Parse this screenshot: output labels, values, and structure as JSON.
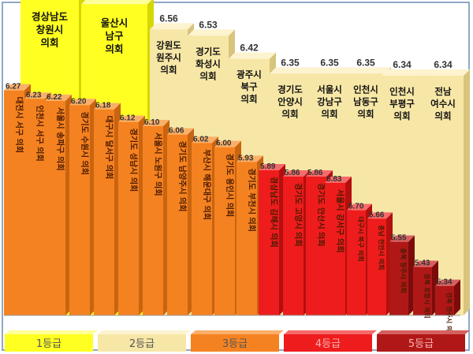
{
  "chart_data": {
    "type": "bar",
    "ylim": [
      5.2,
      6.8
    ],
    "grades": [
      {
        "name": "1등급",
        "color": "#ffff22",
        "side": "#d6d600",
        "top": "#ffff99",
        "labelColor": "#7a6a00"
      },
      {
        "name": "2등급",
        "color": "#f7e7a6",
        "side": "#d8c47c",
        "top": "#fdf3cf",
        "labelColor": "#7a6a00"
      },
      {
        "name": "3등급",
        "color": "#f58220",
        "side": "#c96410",
        "top": "#fab06a",
        "labelColor": "#7a3a00"
      },
      {
        "name": "4등급",
        "color": "#ee1c1c",
        "side": "#b40f0f",
        "top": "#f56a6a",
        "labelColor": "#7a0000"
      },
      {
        "name": "5등급",
        "color": "#b01818",
        "side": "#7c0c0c",
        "top": "#d66060",
        "labelColor": "#ffffff"
      }
    ],
    "bars": [
      {
        "label": "대전시 서구 의회",
        "value": 6.27,
        "grade": 2,
        "orient": "v"
      },
      {
        "label": "경상남도 창원시 의회",
        "value": 6.71,
        "grade": 0,
        "orient": "h"
      },
      {
        "label": "인천시 서구 의회",
        "value": 6.23,
        "grade": 2,
        "orient": "v"
      },
      {
        "label": "울산시 남구 의회",
        "value": 6.68,
        "grade": 0,
        "orient": "h"
      },
      {
        "label": "서울시 송파구 의회",
        "value": 6.22,
        "grade": 2,
        "orient": "v"
      },
      {
        "label": "경기도 수원시 의회",
        "value": 6.2,
        "grade": 2,
        "orient": "v"
      },
      {
        "label": "대구시 달서구 의회",
        "value": 6.18,
        "grade": 2,
        "orient": "v"
      },
      {
        "label": "경기도 성남시 의회",
        "value": 6.12,
        "grade": 2,
        "orient": "v"
      },
      {
        "label": "강원도 원주시 의회",
        "value": 6.56,
        "grade": 1,
        "orient": "h"
      },
      {
        "label": "서울시 노원구 의회",
        "value": 6.1,
        "grade": 2,
        "orient": "v"
      },
      {
        "label": "경기도 남양주시 의회",
        "value": 6.06,
        "grade": 2,
        "orient": "v"
      },
      {
        "label": "경기도 화성시 의회",
        "value": 6.53,
        "grade": 1,
        "orient": "h"
      },
      {
        "label": "부산시 해운대구 의회",
        "value": 6.02,
        "grade": 2,
        "orient": "v"
      },
      {
        "label": "경기도 용인시 의회",
        "value": 6.0,
        "grade": 2,
        "orient": "v"
      },
      {
        "label": "광주시 북구 의회",
        "value": 6.42,
        "grade": 1,
        "orient": "h"
      },
      {
        "label": "경기도 부천시 의회",
        "value": 5.93,
        "grade": 2,
        "orient": "v"
      },
      {
        "label": "경상남도 김해시 의회",
        "value": 5.89,
        "grade": 3,
        "orient": "v"
      },
      {
        "label": "경기도 안양시 의회",
        "value": 6.35,
        "grade": 1,
        "orient": "h"
      },
      {
        "label": "경기도 고양시 의회",
        "value": 5.86,
        "grade": 3,
        "orient": "v"
      },
      {
        "label": "서울시 강남구 의회",
        "value": 6.35,
        "grade": 1,
        "orient": "h"
      },
      {
        "label": "경기도 안산시 의회",
        "value": 5.86,
        "grade": 3,
        "orient": "v"
      },
      {
        "label": "서울시 강서구 의회",
        "value": 5.83,
        "grade": 3,
        "orient": "v"
      },
      {
        "label": "인천시 남동구 의회",
        "value": 6.35,
        "grade": 1,
        "orient": "h"
      },
      {
        "label": "대구시 북구 의회",
        "value": 5.7,
        "grade": 3,
        "orient": "v"
      },
      {
        "label": "충남 천안시 의회",
        "value": 5.66,
        "grade": 3,
        "orient": "v"
      },
      {
        "label": "인천시 부평구 의회",
        "value": 6.34,
        "grade": 1,
        "orient": "h"
      },
      {
        "label": "충북 청주시 의회",
        "value": 5.55,
        "grade": 4,
        "orient": "v"
      },
      {
        "label": "전남 여수시 의회",
        "value": 6.34,
        "grade": 1,
        "orient": "h"
      },
      {
        "label": "경북 포항시 의회",
        "value": 5.43,
        "grade": 4,
        "orient": "v"
      },
      {
        "label": "전북 전주시 의회",
        "value": 5.34,
        "grade": 4,
        "orient": "v"
      }
    ],
    "legend": [
      "1등급",
      "2등급",
      "3등급",
      "4등급",
      "5등급"
    ]
  }
}
